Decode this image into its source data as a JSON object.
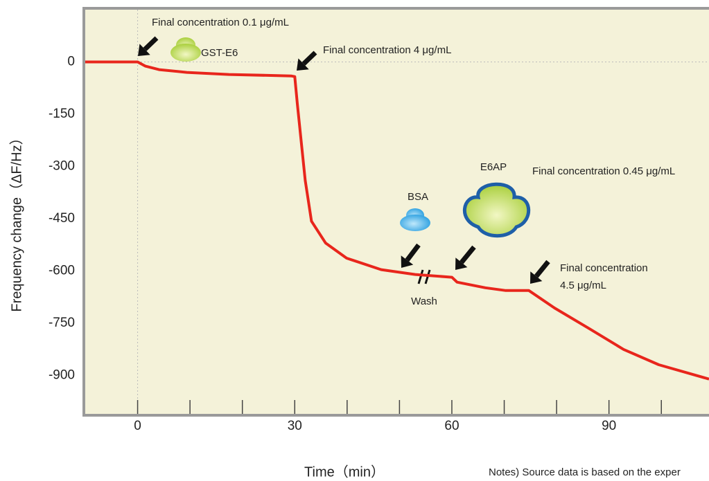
{
  "chart_data": {
    "type": "line",
    "x_label": "Time（min）",
    "y_label": "Frequency change（ΔF/Hz）",
    "x": [
      -10,
      0,
      1.5,
      4.1,
      9.4,
      17.4,
      29.3,
      30,
      30.5,
      32,
      33.2,
      35.9,
      39.9,
      46.5,
      53,
      60,
      61,
      66.4,
      70.3,
      74.7,
      79.6,
      86.2,
      92.8,
      99.5,
      109.1
    ],
    "values": [
      0,
      0,
      -12,
      -22,
      -30,
      -36,
      -40,
      -42,
      -120,
      -340,
      -457,
      -520,
      -563,
      -596,
      -610,
      -618,
      -632,
      -648,
      -656,
      -656,
      -706,
      -765,
      -825,
      -869,
      -910
    ],
    "color": "#e8261c",
    "xlim": [
      -10,
      109.1
    ],
    "ylim": [
      -1010,
      150
    ],
    "xticks": [
      0,
      30,
      60,
      90
    ],
    "xminor_ticks": [
      10,
      20,
      40,
      50,
      70,
      80,
      100
    ],
    "yticks": [
      0,
      -150,
      -300,
      -450,
      -600,
      -750,
      -900
    ],
    "annotations": [
      "Final concentration 0.1 μg/mL",
      "GST-E6",
      "Final concentration 4 μg/mL",
      "BSA",
      "E6AP",
      "Final concentration 0.45 μg/mL",
      "Wash",
      "Final concentration",
      "4.5 μg/mL"
    ],
    "note": "Notes) Source data is based on the exper"
  }
}
